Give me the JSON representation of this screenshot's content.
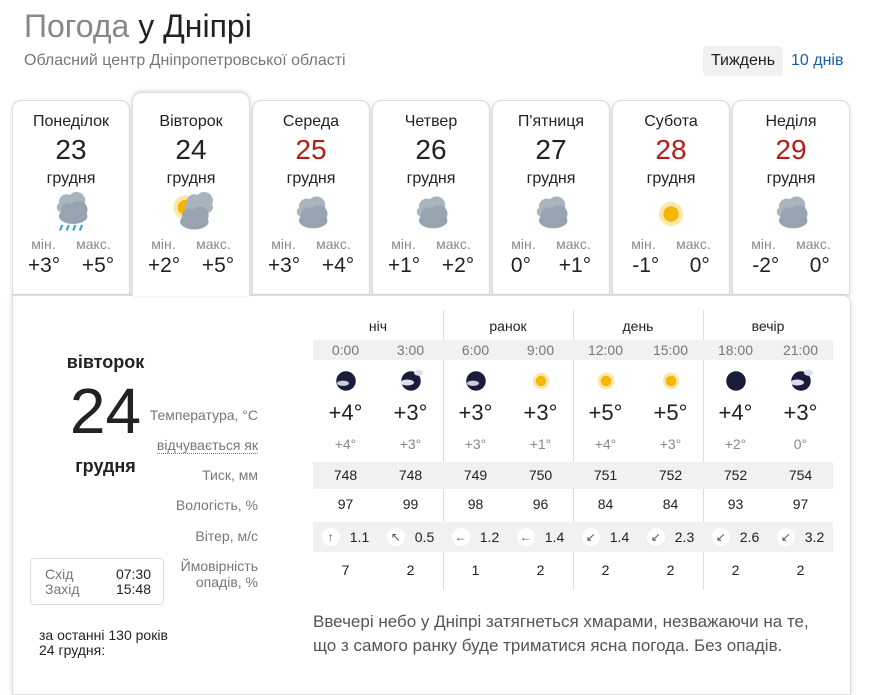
{
  "header": {
    "title_prefix": "Погода",
    "title_city": "у Дніпрі",
    "subtitle": "Обласний центр Дніпропетровської області",
    "tab_week": "Тиждень",
    "tab_10days": "10 днів"
  },
  "days": [
    {
      "name": "Понеділок",
      "date": "23",
      "month": "грудня",
      "icon": "cloud-rain-icon",
      "min_label": "мін.",
      "max_label": "макс.",
      "min": "+3°",
      "max": "+5°",
      "holiday": false
    },
    {
      "name": "Вівторок",
      "date": "24",
      "month": "грудня",
      "icon": "sun-cloud-icon",
      "min_label": "мін.",
      "max_label": "макс.",
      "min": "+2°",
      "max": "+5°",
      "holiday": false
    },
    {
      "name": "Середа",
      "date": "25",
      "month": "грудня",
      "icon": "cloud-icon",
      "min_label": "мін.",
      "max_label": "макс.",
      "min": "+3°",
      "max": "+4°",
      "holiday": true
    },
    {
      "name": "Четвер",
      "date": "26",
      "month": "грудня",
      "icon": "cloud-icon",
      "min_label": "мін.",
      "max_label": "макс.",
      "min": "+1°",
      "max": "+2°",
      "holiday": false
    },
    {
      "name": "П'ятниця",
      "date": "27",
      "month": "грудня",
      "icon": "cloud-icon",
      "min_label": "мін.",
      "max_label": "макс.",
      "min": "0°",
      "max": "+1°",
      "holiday": false
    },
    {
      "name": "Субота",
      "date": "28",
      "month": "грудня",
      "icon": "sun-icon",
      "min_label": "мін.",
      "max_label": "макс.",
      "min": "-1°",
      "max": "0°",
      "holiday": true
    },
    {
      "name": "Неділя",
      "date": "29",
      "month": "грудня",
      "icon": "cloud-icon",
      "min_label": "мін.",
      "max_label": "макс.",
      "min": "-2°",
      "max": "0°",
      "holiday": true
    }
  ],
  "selected": {
    "weekday": "вівторок",
    "date": "24",
    "month": "грудня",
    "sunrise_label": "Схід",
    "sunrise": "07:30",
    "sunset_label": "Захід",
    "sunset": "15:48",
    "history_line1": "за останні 130 років",
    "history_line2": "24 грудня:"
  },
  "table": {
    "groups": [
      "ніч",
      "ранок",
      "день",
      "вечір"
    ],
    "times": [
      "0:00",
      "3:00",
      "6:00",
      "9:00",
      "12:00",
      "15:00",
      "18:00",
      "21:00"
    ],
    "icons": [
      "moon-cloud-icon",
      "moon-cloudy-icon",
      "moon-cloud-icon",
      "sun-icon",
      "sun-icon",
      "sun-icon",
      "moon-icon",
      "moon-cloudy-icon"
    ],
    "labels": {
      "temp": "Температура, °C",
      "feels": "відчувається як",
      "pressure": "Тиск, мм",
      "humidity": "Вологість, %",
      "wind": "Вітер, м/с",
      "precip1": "Ймовірність",
      "precip2": "опадів, %"
    },
    "temp": [
      "+4°",
      "+3°",
      "+3°",
      "+3°",
      "+5°",
      "+5°",
      "+4°",
      "+3°"
    ],
    "feels": [
      "+4°",
      "+3°",
      "+3°",
      "+1°",
      "+4°",
      "+3°",
      "+2°",
      "0°"
    ],
    "pressure": [
      "748",
      "748",
      "749",
      "750",
      "751",
      "752",
      "752",
      "754"
    ],
    "humidity": [
      "97",
      "99",
      "98",
      "96",
      "84",
      "84",
      "93",
      "97"
    ],
    "wind_dir": [
      "↑",
      "↖",
      "←",
      "←",
      "↙",
      "↙",
      "↙",
      "↙"
    ],
    "wind": [
      "1.1",
      "0.5",
      "1.2",
      "1.4",
      "1.4",
      "2.3",
      "2.6",
      "3.2"
    ],
    "precip": [
      "7",
      "2",
      "1",
      "2",
      "2",
      "2",
      "2",
      "2"
    ]
  },
  "description": "Ввечері небо у Дніпрі затягнеться хмарами, незважаючи на те, що з самого ранку буде триматися ясна погода. Без опадів.",
  "colors": {
    "holiday": "#b71c1c",
    "link": "#1a5ea8"
  }
}
